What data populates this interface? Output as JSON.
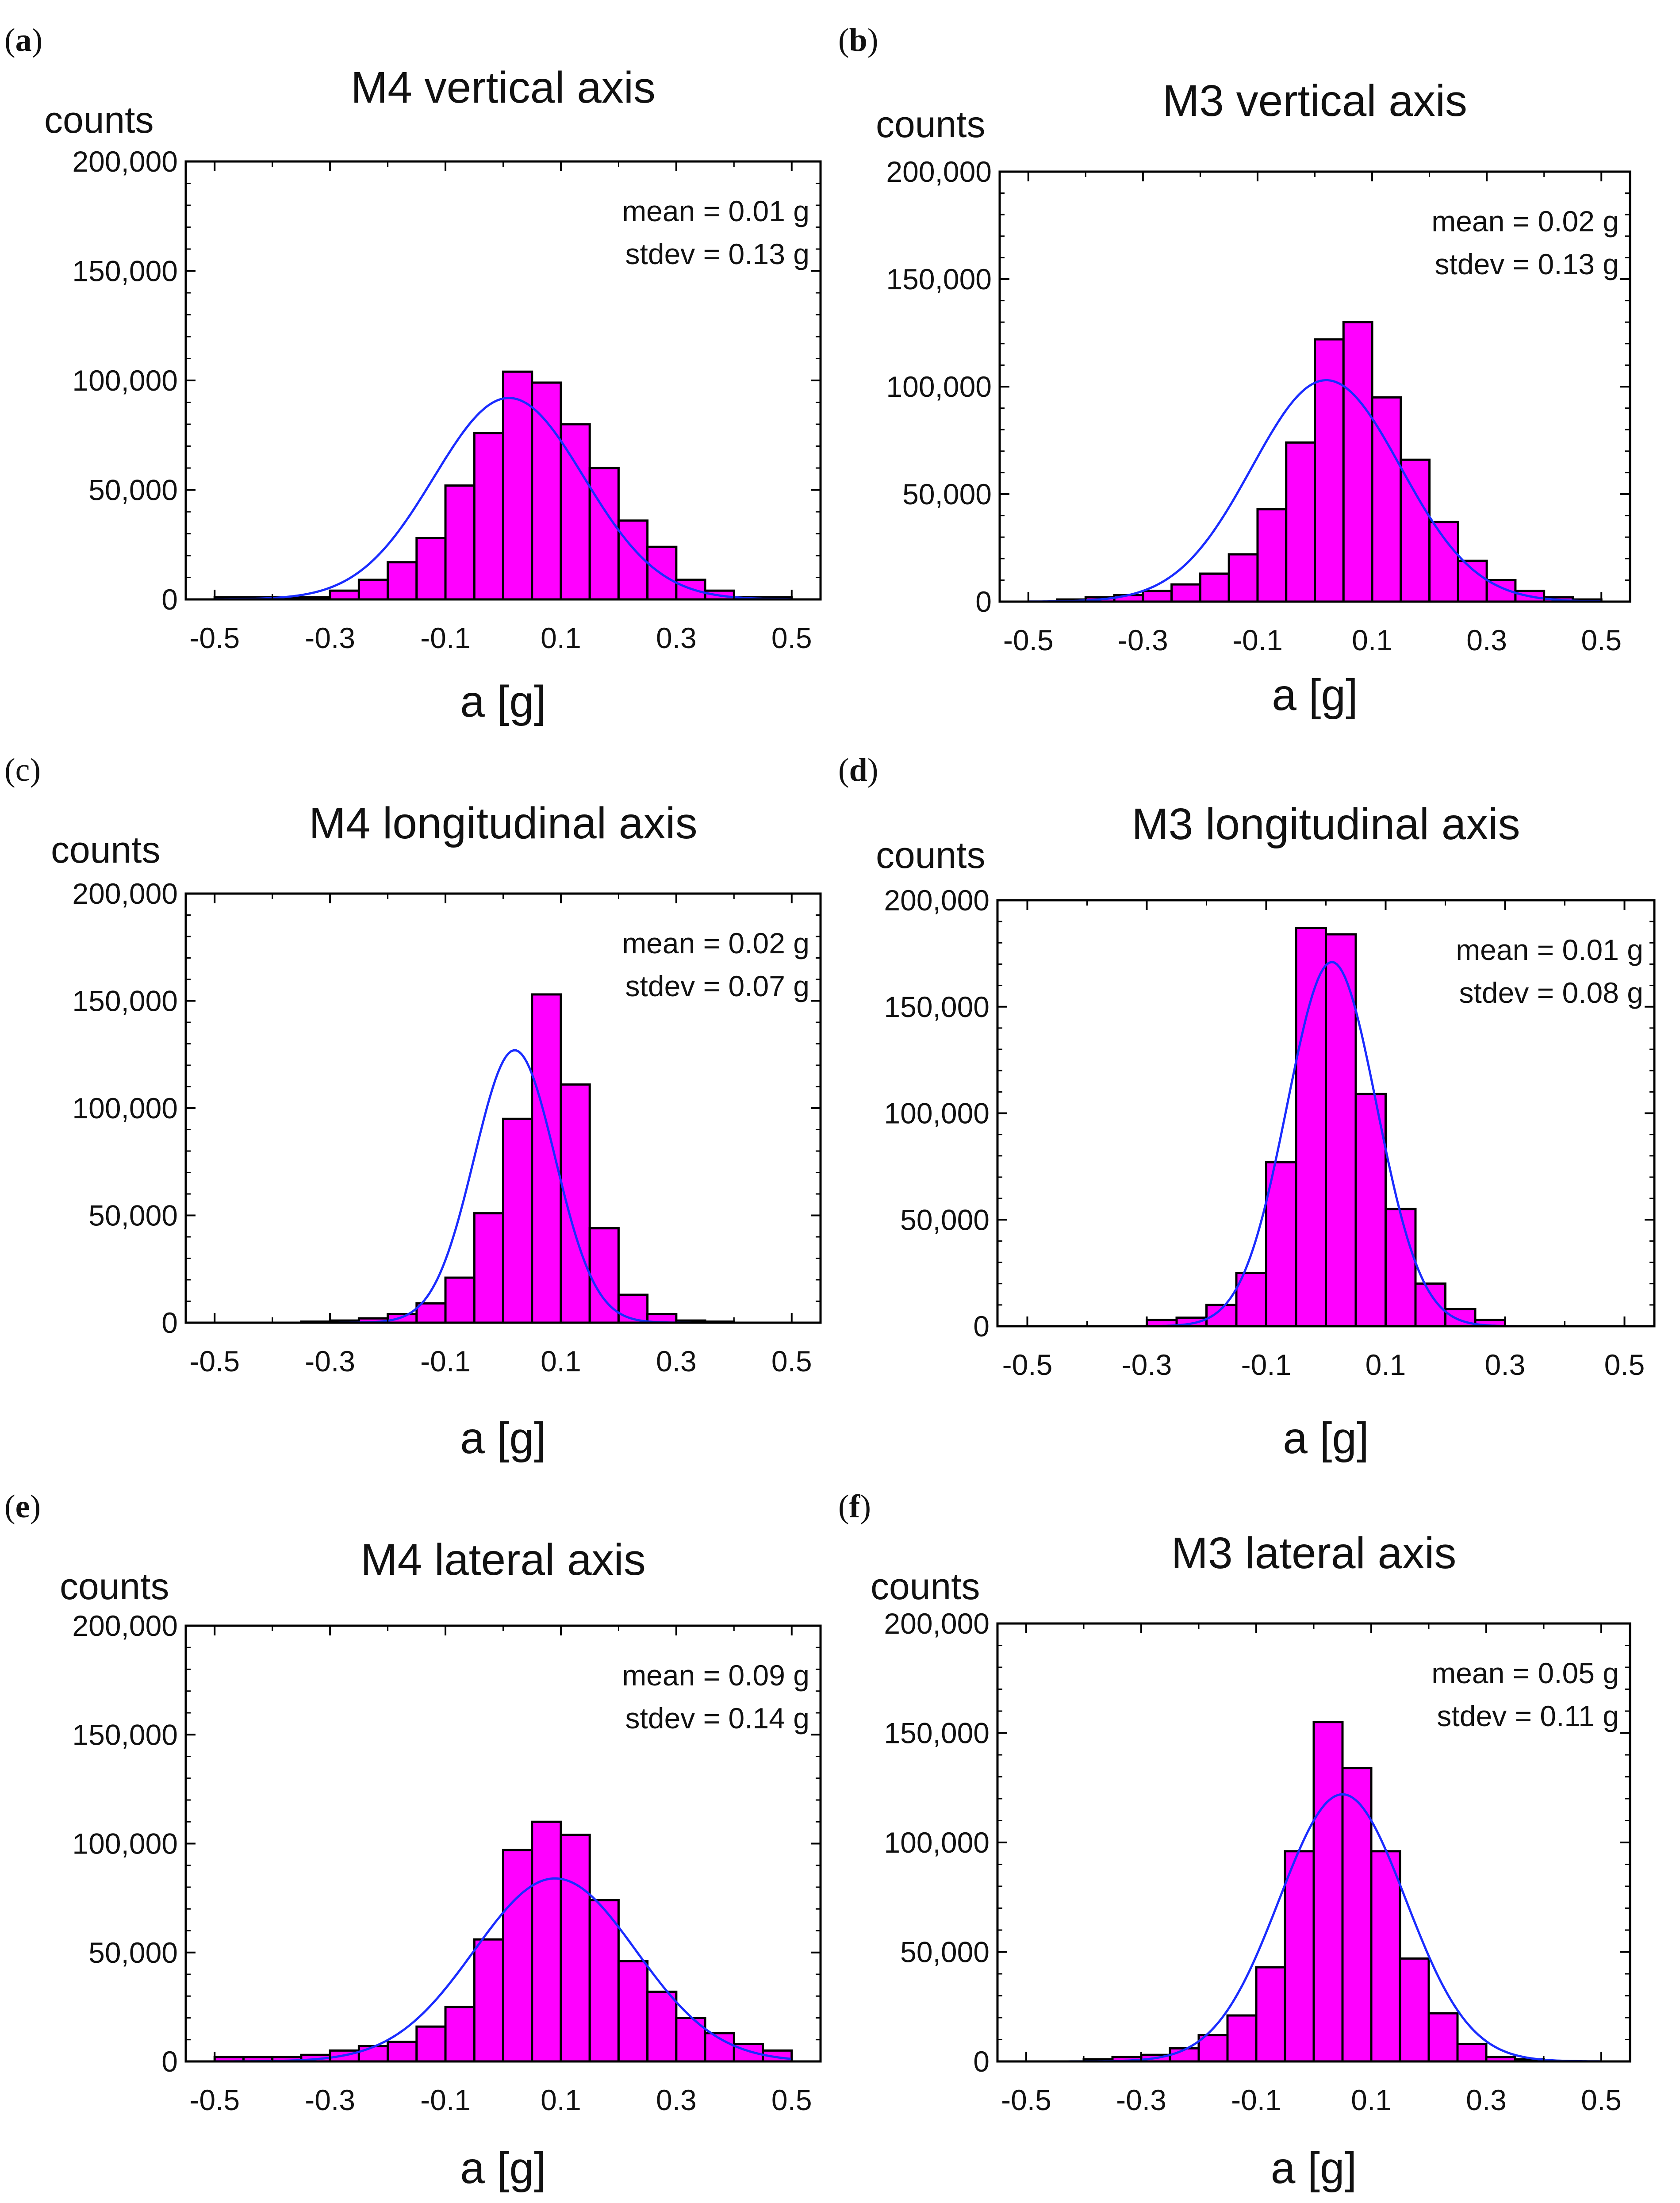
{
  "figure": {
    "bar_color": "#ff00ff",
    "bar_edge_color": "#000000",
    "fit_color": "#1a2cff",
    "background": "#ffffff"
  },
  "chart_data": [
    {
      "id": "a",
      "panel_label_open": "(",
      "panel_label_letter": "a",
      "panel_label_close": ")",
      "panel_letter_bold": true,
      "type": "bar",
      "title": "M4 vertical axis",
      "ylabel": "counts",
      "xlabel": "a [g]",
      "xlim": [
        -0.55,
        0.55
      ],
      "ylim": [
        0,
        200000
      ],
      "xticks": [
        -0.5,
        -0.3,
        -0.1,
        0.1,
        0.3,
        0.5
      ],
      "xtick_labels": [
        "-0.5",
        "-0.3",
        "-0.1",
        "0.1",
        "0.3",
        "0.5"
      ],
      "yticks": [
        0,
        50000,
        100000,
        150000,
        200000
      ],
      "ytick_labels": [
        "0",
        "50,000",
        "100,000",
        "150,000",
        "200,000"
      ],
      "mean_label": "mean = 0.01 g",
      "stdev_label": "stdev = 0.13 g",
      "bin_width": 0.05,
      "bins": [
        -0.5,
        -0.45,
        -0.4,
        -0.35,
        -0.3,
        -0.25,
        -0.2,
        -0.15,
        -0.1,
        -0.05,
        0.0,
        0.05,
        0.1,
        0.15,
        0.2,
        0.25,
        0.3,
        0.35,
        0.4,
        0.45
      ],
      "values": [
        1000,
        1000,
        1000,
        1000,
        4000,
        9000,
        17000,
        28000,
        52000,
        76000,
        104000,
        99000,
        80000,
        60000,
        36000,
        24000,
        9000,
        4000,
        1000,
        1000
      ],
      "fit": {
        "mean": 0.01,
        "sd": 0.13,
        "peak": 92000
      }
    },
    {
      "id": "b",
      "panel_label_open": "(",
      "panel_label_letter": "b",
      "panel_label_close": ")",
      "panel_letter_bold": true,
      "type": "bar",
      "title": "M3 vertical axis",
      "ylabel": "counts",
      "xlabel": "a [g]",
      "xlim": [
        -0.55,
        0.55
      ],
      "ylim": [
        0,
        200000
      ],
      "xticks": [
        -0.5,
        -0.3,
        -0.1,
        0.1,
        0.3,
        0.5
      ],
      "xtick_labels": [
        "-0.5",
        "-0.3",
        "-0.1",
        "0.1",
        "0.3",
        "0.5"
      ],
      "yticks": [
        0,
        50000,
        100000,
        150000,
        200000
      ],
      "ytick_labels": [
        "0",
        "50,000",
        "100,000",
        "150,000",
        "200,000"
      ],
      "mean_label": "mean = 0.02 g",
      "stdev_label": "stdev = 0.13 g",
      "bin_width": 0.05,
      "bins": [
        -0.45,
        -0.4,
        -0.35,
        -0.3,
        -0.25,
        -0.2,
        -0.15,
        -0.1,
        -0.05,
        0.0,
        0.05,
        0.1,
        0.15,
        0.2,
        0.25,
        0.3,
        0.35,
        0.4,
        0.45
      ],
      "values": [
        1000,
        2000,
        3000,
        5000,
        8000,
        13000,
        22000,
        43000,
        74000,
        122000,
        130000,
        95000,
        66000,
        37000,
        19000,
        10000,
        5000,
        2000,
        1000
      ],
      "fit": {
        "mean": 0.02,
        "sd": 0.13,
        "peak": 103000
      }
    },
    {
      "id": "c",
      "panel_label_open": "(",
      "panel_label_letter": "c",
      "panel_label_close": ")",
      "panel_letter_bold": false,
      "type": "bar",
      "title": "M4 longitudinal axis",
      "ylabel": "counts",
      "xlabel": "a [g]",
      "xlim": [
        -0.55,
        0.55
      ],
      "ylim": [
        0,
        200000
      ],
      "xticks": [
        -0.5,
        -0.3,
        -0.1,
        0.1,
        0.3,
        0.5
      ],
      "xtick_labels": [
        "-0.5",
        "-0.3",
        "-0.1",
        "0.1",
        "0.3",
        "0.5"
      ],
      "yticks": [
        0,
        50000,
        100000,
        150000,
        200000
      ],
      "ytick_labels": [
        "0",
        "50,000",
        "100,000",
        "150,000",
        "200,000"
      ],
      "mean_label": "mean = 0.02 g",
      "stdev_label": "stdev = 0.07 g",
      "bin_width": 0.05,
      "bins": [
        -0.35,
        -0.3,
        -0.25,
        -0.2,
        -0.15,
        -0.1,
        -0.05,
        0.0,
        0.05,
        0.1,
        0.15,
        0.2,
        0.25,
        0.3,
        0.35
      ],
      "values": [
        500,
        1000,
        2000,
        4000,
        9000,
        21000,
        51000,
        95000,
        153000,
        111000,
        44000,
        13000,
        4000,
        1000,
        500
      ],
      "fit": {
        "mean": 0.02,
        "sd": 0.07,
        "peak": 127000
      }
    },
    {
      "id": "d",
      "panel_label_open": "(",
      "panel_label_letter": "d",
      "panel_label_close": ")",
      "panel_letter_bold": true,
      "type": "bar",
      "title": "M3 longitudinal axis",
      "ylabel": "counts",
      "xlabel": "a [g]",
      "xlim": [
        -0.55,
        0.55
      ],
      "ylim": [
        0,
        200000
      ],
      "xticks": [
        -0.5,
        -0.3,
        -0.1,
        0.1,
        0.3,
        0.5
      ],
      "xtick_labels": [
        "-0.5",
        "-0.3",
        "-0.1",
        "0.1",
        "0.3",
        "0.5"
      ],
      "yticks": [
        0,
        50000,
        100000,
        150000,
        200000
      ],
      "ytick_labels": [
        "0",
        "50,000",
        "100,000",
        "150,000",
        "200,000"
      ],
      "mean_label": "mean = 0.01 g",
      "stdev_label": "stdev = 0.08 g",
      "bin_width": 0.05,
      "bins": [
        -0.3,
        -0.25,
        -0.2,
        -0.15,
        -0.1,
        -0.05,
        0.0,
        0.05,
        0.1,
        0.15,
        0.2,
        0.25
      ],
      "values": [
        3000,
        4000,
        10000,
        25000,
        77000,
        187000,
        184000,
        109000,
        55000,
        20000,
        8000,
        3000
      ],
      "fit": {
        "mean": 0.01,
        "sd": 0.075,
        "peak": 171000
      }
    },
    {
      "id": "e",
      "panel_label_open": "(",
      "panel_label_letter": "e",
      "panel_label_close": ")",
      "panel_letter_bold": true,
      "type": "bar",
      "title": "M4 lateral axis",
      "ylabel": "counts",
      "xlabel": "a [g]",
      "xlim": [
        -0.55,
        0.55
      ],
      "ylim": [
        0,
        200000
      ],
      "xticks": [
        -0.5,
        -0.3,
        -0.1,
        0.1,
        0.3,
        0.5
      ],
      "xtick_labels": [
        "-0.5",
        "-0.3",
        "-0.1",
        "0.1",
        "0.3",
        "0.5"
      ],
      "yticks": [
        0,
        50000,
        100000,
        150000,
        200000
      ],
      "ytick_labels": [
        "0",
        "50,000",
        "100,000",
        "150,000",
        "200,000"
      ],
      "mean_label": "mean = 0.09 g",
      "stdev_label": "stdev = 0.14 g",
      "bin_width": 0.05,
      "bins": [
        -0.5,
        -0.45,
        -0.4,
        -0.35,
        -0.3,
        -0.25,
        -0.2,
        -0.15,
        -0.1,
        -0.05,
        0.0,
        0.05,
        0.1,
        0.15,
        0.2,
        0.25,
        0.3,
        0.35,
        0.4,
        0.45
      ],
      "values": [
        2000,
        2000,
        2000,
        3000,
        5000,
        7000,
        9000,
        16000,
        25000,
        56000,
        97000,
        110000,
        104000,
        74000,
        46000,
        32000,
        20000,
        13000,
        8000,
        5000
      ],
      "fit": {
        "mean": 0.09,
        "sd": 0.14,
        "peak": 84000
      }
    },
    {
      "id": "f",
      "panel_label_open": "(",
      "panel_label_letter": "f",
      "panel_label_close": ")",
      "panel_letter_bold": true,
      "type": "bar",
      "title": "M3 lateral axis",
      "ylabel": "counts",
      "xlabel": "a [g]",
      "xlim": [
        -0.55,
        0.55
      ],
      "ylim": [
        0,
        200000
      ],
      "xticks": [
        -0.5,
        -0.3,
        -0.1,
        0.1,
        0.3,
        0.5
      ],
      "xtick_labels": [
        "-0.5",
        "-0.3",
        "-0.1",
        "0.1",
        "0.3",
        "0.5"
      ],
      "yticks": [
        0,
        50000,
        100000,
        150000,
        200000
      ],
      "ytick_labels": [
        "0",
        "50,000",
        "100,000",
        "150,000",
        "200,000"
      ],
      "mean_label": "mean = 0.05 g",
      "stdev_label": "stdev = 0.11 g",
      "bin_width": 0.05,
      "bins": [
        -0.4,
        -0.35,
        -0.3,
        -0.25,
        -0.2,
        -0.15,
        -0.1,
        -0.05,
        0.0,
        0.05,
        0.1,
        0.15,
        0.2,
        0.25,
        0.3,
        0.35
      ],
      "values": [
        1000,
        2000,
        3000,
        6000,
        12000,
        21000,
        43000,
        96000,
        155000,
        134000,
        96000,
        47000,
        22000,
        8000,
        2000,
        1000
      ],
      "fit": {
        "mean": 0.05,
        "sd": 0.11,
        "peak": 122000
      }
    }
  ]
}
